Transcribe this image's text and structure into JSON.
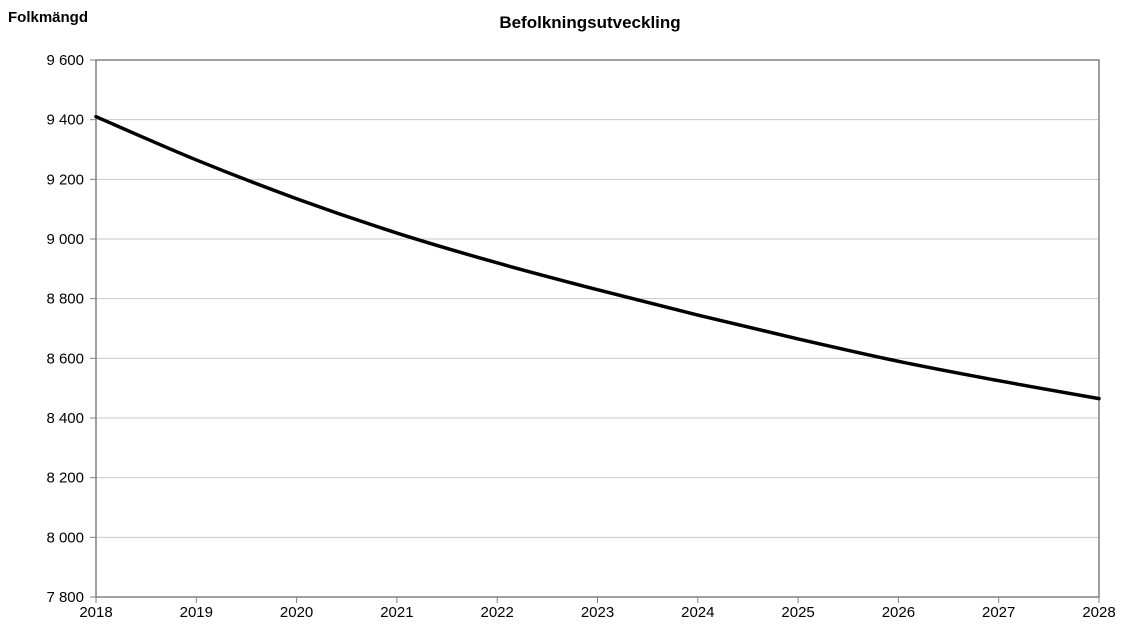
{
  "chart_data": {
    "type": "line",
    "title": "Befolkningsutveckling",
    "ylabel": "Folkmängd",
    "xlabel": "",
    "x": [
      2018,
      2019,
      2020,
      2021,
      2022,
      2023,
      2024,
      2025,
      2026,
      2027,
      2028
    ],
    "x_tick_labels": [
      "2018",
      "2019",
      "2020",
      "2021",
      "2022",
      "2023",
      "2024",
      "2025",
      "2026",
      "2027",
      "2028"
    ],
    "y_tick_values": [
      7800,
      8000,
      8200,
      8400,
      8600,
      8800,
      9000,
      9200,
      9400,
      9600
    ],
    "y_tick_labels": [
      "7 800",
      "8 000",
      "8 200",
      "8 400",
      "8 600",
      "8 800",
      "9 000",
      "9 200",
      "9 400",
      "9 600"
    ],
    "ylim": [
      7800,
      9600
    ],
    "xlim": [
      2018,
      2028
    ],
    "grid": "horizontal",
    "legend": "none",
    "series": [
      {
        "values": [
          9410,
          9265,
          9135,
          9020,
          8920,
          8830,
          8745,
          8665,
          8590,
          8525,
          8465
        ],
        "color": "#000000"
      }
    ],
    "colors": {
      "line": "#000000",
      "grid": "#c8c8c8",
      "axis": "#808080"
    }
  }
}
